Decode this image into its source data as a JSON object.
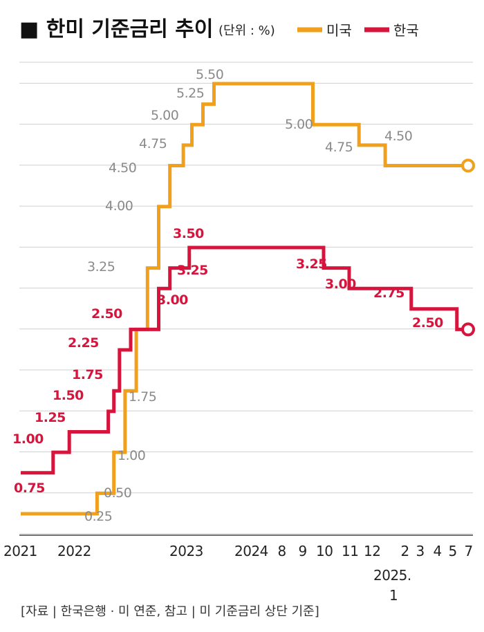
{
  "header": {
    "title": "■ 한미 기준금리 추이",
    "unit": "(단위 : %)"
  },
  "legend": [
    {
      "name": "미국",
      "color": "#f0a01c"
    },
    {
      "name": "한국",
      "color": "#d6143c"
    }
  ],
  "source": "[자료 | 한국은행 · 미 연준, 참고 | 미 기준금리 상단 기준]",
  "chart_data": {
    "type": "line",
    "step": true,
    "grid": true,
    "ylim": [
      0,
      5.5
    ],
    "x_ticks": [
      {
        "label": "2021",
        "t": 2021.0
      },
      {
        "label": "2022",
        "t": 2022.0
      },
      {
        "label": "2023",
        "t": 2023.0
      },
      {
        "label": "2024",
        "t": 2024.0
      },
      {
        "label": "8",
        "t": 2024.58
      },
      {
        "label": "9",
        "t": 2024.67
      },
      {
        "label": "10",
        "t": 2024.75
      },
      {
        "label": "11",
        "t": 2024.83
      },
      {
        "label": "12",
        "t": 2024.92
      },
      {
        "label": "2",
        "t": 2025.08
      },
      {
        "label": "3",
        "t": 2025.17
      },
      {
        "label": "4",
        "t": 2025.25
      },
      {
        "label": "5",
        "t": 2025.33
      },
      {
        "label": "7",
        "t": 2025.5
      }
    ],
    "x_extra_label": [
      "2025.",
      "1"
    ],
    "series": [
      {
        "name": "미국",
        "color": "#f0a01c",
        "points": [
          {
            "t": 2021.0,
            "v": 0.25
          },
          {
            "t": 2022.2,
            "v": 0.5,
            "label": "0.50"
          },
          {
            "t": 2022.35,
            "v": 1.0,
            "label": "1.00"
          },
          {
            "t": 2022.45,
            "v": 1.75,
            "label": "1.75"
          },
          {
            "t": 2022.55,
            "v": 2.5
          },
          {
            "t": 2022.65,
            "v": 3.25,
            "label": "3.25"
          },
          {
            "t": 2022.75,
            "v": 4.0,
            "label": "4.00"
          },
          {
            "t": 2022.85,
            "v": 4.5,
            "label": "4.50"
          },
          {
            "t": 2022.97,
            "v": 4.75,
            "label": "4.75"
          },
          {
            "t": 2023.08,
            "v": 5.0,
            "label": "5.00"
          },
          {
            "t": 2023.25,
            "v": 5.25,
            "label": "5.25"
          },
          {
            "t": 2023.42,
            "v": 5.5,
            "label": "5.50"
          },
          {
            "t": 2024.71,
            "v": 5.0,
            "label": "5.00"
          },
          {
            "t": 2024.87,
            "v": 4.75,
            "label": "4.75"
          },
          {
            "t": 2024.99,
            "v": 4.5,
            "label": "4.50"
          },
          {
            "t": 2025.5,
            "v": 4.5
          }
        ],
        "extra_labels": [
          {
            "t": 2022.0,
            "v": 0.25,
            "label": "0.25"
          }
        ]
      },
      {
        "name": "한국",
        "color": "#d6143c",
        "points": [
          {
            "t": 2021.0,
            "v": 0.75,
            "label": "0.75"
          },
          {
            "t": 2021.6,
            "v": 1.0,
            "label": "1.00"
          },
          {
            "t": 2021.9,
            "v": 1.25,
            "label": "1.25"
          },
          {
            "t": 2022.3,
            "v": 1.5,
            "label": "1.50"
          },
          {
            "t": 2022.35,
            "v": 1.75,
            "label": "1.75"
          },
          {
            "t": 2022.4,
            "v": 2.25,
            "label": "2.25"
          },
          {
            "t": 2022.5,
            "v": 2.5,
            "label": "2.50"
          },
          {
            "t": 2022.75,
            "v": 3.0,
            "label": "3.00"
          },
          {
            "t": 2022.85,
            "v": 3.25,
            "label": "3.25"
          },
          {
            "t": 2023.04,
            "v": 3.5,
            "label": "3.50"
          },
          {
            "t": 2024.75,
            "v": 3.25,
            "label": "3.25"
          },
          {
            "t": 2024.83,
            "v": 3.0,
            "label": "3.00"
          },
          {
            "t": 2025.12,
            "v": 2.75,
            "label": "2.75"
          },
          {
            "t": 2025.38,
            "v": 2.5,
            "label": "2.50"
          },
          {
            "t": 2025.5,
            "v": 2.5
          }
        ]
      }
    ]
  }
}
